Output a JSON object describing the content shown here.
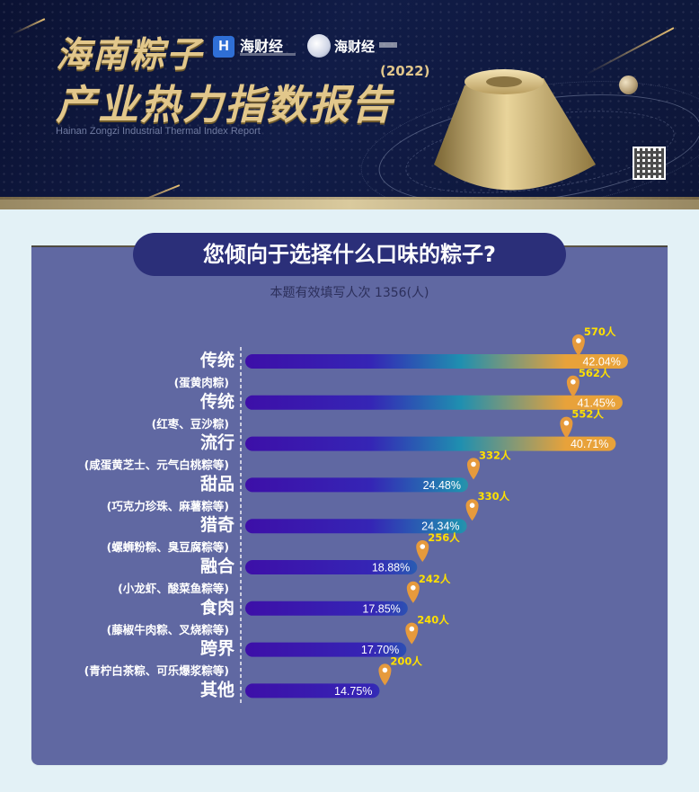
{
  "banner": {
    "title_line1": "海南粽子",
    "title_line2": "产业热力指数报告",
    "year": "(2022)",
    "subtitle_en": "Hainan Zongzi Industrial Thermal Index Report",
    "logo1_mark": "H",
    "logo1_name": "海财经",
    "logo2_name": "海财经"
  },
  "question": "您倾向于选择什么口味的粽子?",
  "respondents_note": "本题有效填写人次 1356(人)",
  "chart_data": {
    "type": "bar",
    "orientation": "horizontal",
    "categories": [
      {
        "name": "传统",
        "sub": "(蛋黄肉粽)"
      },
      {
        "name": "传统",
        "sub": "(红枣、豆沙粽)"
      },
      {
        "name": "流行",
        "sub": "(咸蛋黄芝士、元气白桃粽等)"
      },
      {
        "name": "甜品",
        "sub": "(巧克力珍珠、麻薯粽等)"
      },
      {
        "name": "猎奇",
        "sub": "(螺蛳粉粽、臭豆腐粽等)"
      },
      {
        "name": "融合",
        "sub": "(小龙虾、酸菜鱼粽等)"
      },
      {
        "name": "食肉",
        "sub": "(藤椒牛肉粽、叉烧粽等)"
      },
      {
        "name": "跨界",
        "sub": "(青柠白茶粽、可乐爆浆粽等)"
      },
      {
        "name": "其他",
        "sub": ""
      }
    ],
    "values": [
      42.04,
      41.45,
      40.71,
      24.48,
      24.34,
      18.88,
      17.85,
      17.7,
      14.75
    ],
    "value_labels": [
      "42.04%",
      "41.45%",
      "40.71%",
      "24.48%",
      "24.34%",
      "18.88%",
      "17.85%",
      "17.70%",
      "14.75%"
    ],
    "counts": [
      "570人",
      "562人",
      "552人",
      "332人",
      "330人",
      "256人",
      "242人",
      "240人",
      "200人"
    ],
    "colors": {
      "bar_start": "#3d0fa8",
      "bar_mid": "#1f8fb0",
      "bar_end": "#e8a23a",
      "count_label": "#ffe000",
      "pin": "#e69a3c",
      "card": "#6068a2",
      "pill": "#2b2f79"
    }
  }
}
